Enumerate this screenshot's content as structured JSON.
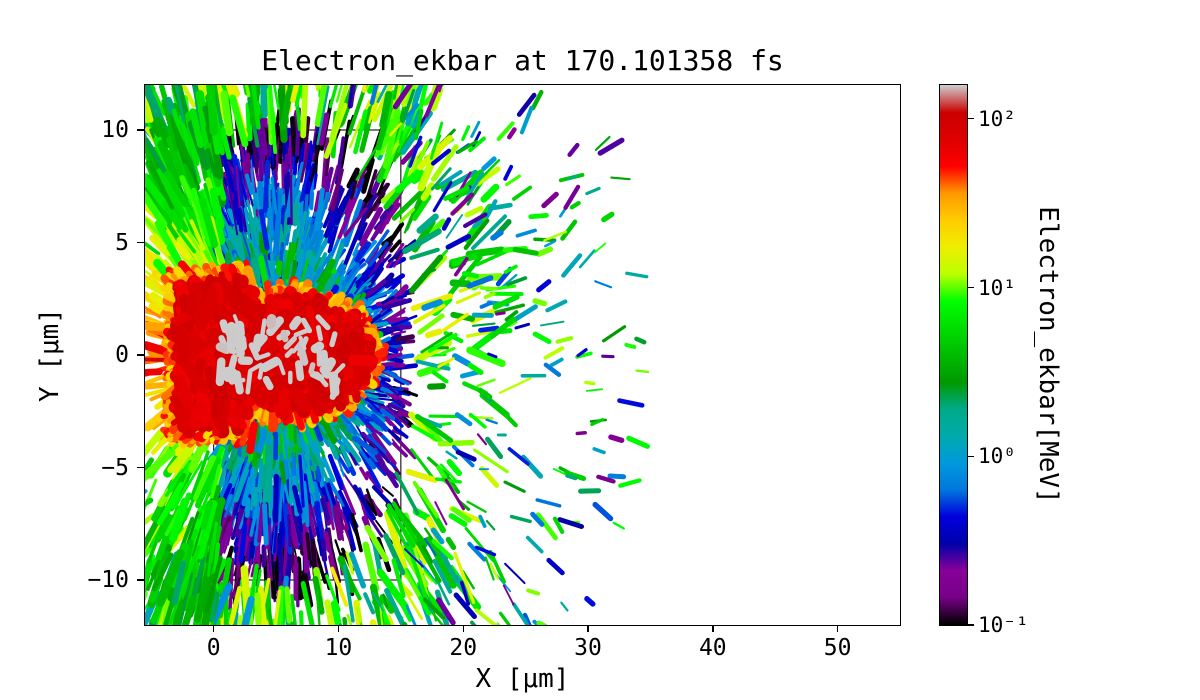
{
  "chart_data": {
    "type": "heatmap",
    "title": "Electron_ekbar at 170.101358 fs",
    "time_fs": 170.101358,
    "xlabel": "X [μm]",
    "ylabel": "Y [μm]",
    "xlim": [
      -5.5,
      55
    ],
    "ylim": [
      -12,
      12
    ],
    "xticks": [
      {
        "v": 0,
        "label": "0"
      },
      {
        "v": 10,
        "label": "10"
      },
      {
        "v": 20,
        "label": "20"
      },
      {
        "v": 30,
        "label": "30"
      },
      {
        "v": 40,
        "label": "40"
      },
      {
        "v": 50,
        "label": "50"
      }
    ],
    "yticks": [
      {
        "v": -10,
        "label": "−10"
      },
      {
        "v": -5,
        "label": "−5"
      },
      {
        "v": 0,
        "label": "0"
      },
      {
        "v": 5,
        "label": "5"
      },
      {
        "v": 10,
        "label": "10"
      }
    ],
    "grid": false,
    "colorbar": {
      "label": "Electron_ekbar[MeV]",
      "scale": "log",
      "range_log10": [
        -1,
        2.2
      ],
      "ticks": [
        {
          "v": 0.1,
          "label": "10⁻¹"
        },
        {
          "v": 1,
          "label": "10⁰"
        },
        {
          "v": 10,
          "label": "10¹"
        },
        {
          "v": 100,
          "label": "10²"
        }
      ],
      "colormap": "nipy_spectral",
      "colormap_stops": [
        [
          0.0,
          "#000000"
        ],
        [
          0.05,
          "#770088"
        ],
        [
          0.1,
          "#880099"
        ],
        [
          0.15,
          "#0000aa"
        ],
        [
          0.2,
          "#0000dd"
        ],
        [
          0.25,
          "#0077dd"
        ],
        [
          0.3,
          "#0099dd"
        ],
        [
          0.35,
          "#00aaaa"
        ],
        [
          0.4,
          "#00aa88"
        ],
        [
          0.45,
          "#009900"
        ],
        [
          0.5,
          "#00bb00"
        ],
        [
          0.55,
          "#00dd00"
        ],
        [
          0.6,
          "#00ff00"
        ],
        [
          0.65,
          "#bbff00"
        ],
        [
          0.7,
          "#eeee00"
        ],
        [
          0.75,
          "#ffcc00"
        ],
        [
          0.8,
          "#ff9900"
        ],
        [
          0.85,
          "#ff0000"
        ],
        [
          0.9,
          "#dd0000"
        ],
        [
          0.95,
          "#cc0000"
        ],
        [
          1.0,
          "#cccccc"
        ]
      ]
    },
    "target_box": {
      "x0": 0,
      "x1": 15,
      "y0": -10,
      "y1": 10,
      "edge_color": "#222222"
    },
    "core_shape": {
      "ellipse": {
        "cx": 6.5,
        "cy": 0,
        "rx": 5.8,
        "ry": 2.1
      },
      "block": {
        "x0": -2.7,
        "x1": 2.5,
        "hy": 2.9
      },
      "rim_ellipse": {
        "cx": 6.5,
        "cy": 0,
        "rx": 6.7,
        "ry": 2.8
      },
      "rim_block": {
        "x0": -3.5,
        "x1": 3.1,
        "hy": 3.7
      }
    },
    "render": {
      "seed": 42,
      "center": [
        5,
        0
      ],
      "zones": {
        "inner_fan": {
          "n": 3200,
          "r0": 4.2,
          "r1": 12.6,
          "e_base": 2.2,
          "e_decay": 2.4,
          "e_jitter": 0.7
        },
        "halo": {
          "n": 850,
          "r0": 11.0,
          "r1": 17.5,
          "loge0": 0.55,
          "loge1": 1.25
        },
        "debris": {
          "n": 380,
          "r0": 14.0,
          "r1": 27.0,
          "loge0": -0.8,
          "loge1": 1.1
        },
        "left_spray": {
          "n": 420,
          "e_peak": 55,
          "e_floor": 3,
          "y_decay": 2.3
        },
        "ring": {
          "n": 750,
          "r0": 3.1,
          "r1": 5.9,
          "loge0": -0.35,
          "loge1": 0.8
        },
        "rim": {
          "n": 750,
          "loge0": 1.32,
          "loge1": 1.78
        },
        "core": {
          "n": 1300,
          "loge0": 1.78,
          "loge1": 2.02
        },
        "speckles": {
          "n": 60,
          "loge0": 2.18,
          "loge1": 2.45
        }
      }
    }
  }
}
